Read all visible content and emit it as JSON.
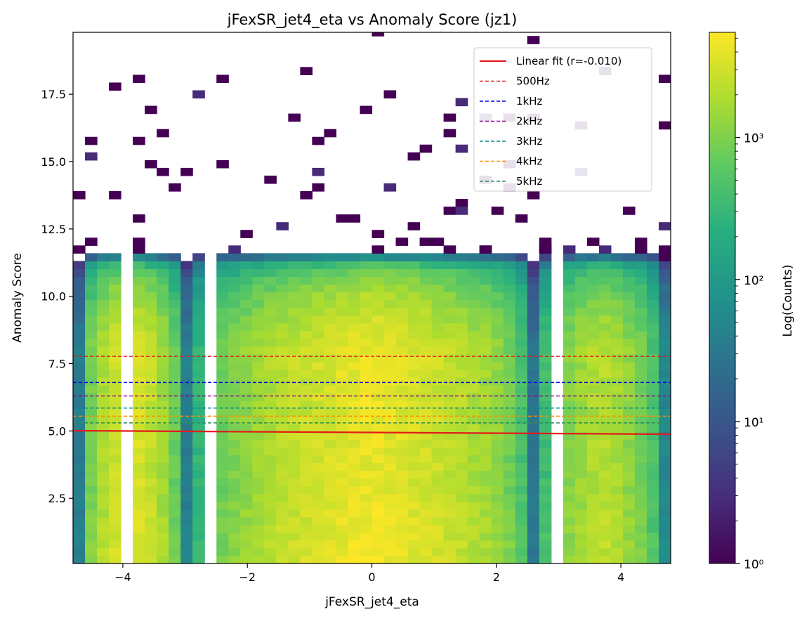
{
  "chart_data": {
    "type": "heatmap",
    "title": "jFexSR_jet4_eta vs Anomaly Score (jz1)",
    "xlabel": "jFexSR_jet4_eta",
    "ylabel": "Anomaly Score",
    "xlim": [
      -4.8,
      4.8
    ],
    "ylim": [
      0.08,
      19.8
    ],
    "xticks": [
      -4,
      -2,
      0,
      2,
      4
    ],
    "xtick_labels": [
      "−4",
      "−2",
      "0",
      "2",
      "4"
    ],
    "yticks": [
      2.5,
      5.0,
      7.5,
      10.0,
      12.5,
      15.0,
      17.5
    ],
    "ytick_labels": [
      "2.5",
      "5.0",
      "7.5",
      "10.0",
      "12.5",
      "15.0",
      "17.5"
    ],
    "colorbar": {
      "label": "Log(Counts)",
      "scale": "log",
      "range": [
        1,
        5500
      ],
      "tick_values": [
        1,
        10,
        100,
        1000
      ],
      "tick_labels": [
        "10⁰",
        "10¹",
        "10²",
        "10³"
      ],
      "colormap": "viridis"
    },
    "heatmap_bins": {
      "x_bins": 50,
      "y_bins": 40,
      "empty_eta_gaps": [
        [
          -4.03,
          -3.84
        ],
        [
          -2.69,
          -2.5
        ],
        [
          2.88,
          3.07
        ]
      ]
    },
    "column_peak_counts": [
      {
        "eta": -4.7,
        "count": 40
      },
      {
        "eta": -3.9,
        "count": 4500
      },
      {
        "eta": -3.0,
        "count": 8
      },
      {
        "eta": -2.0,
        "count": 1500
      },
      {
        "eta": 0.0,
        "count": 5000
      },
      {
        "eta": 2.0,
        "count": 1500
      },
      {
        "eta": 2.6,
        "count": 12
      },
      {
        "eta": 3.7,
        "count": 2500
      },
      {
        "eta": 4.7,
        "count": 60
      }
    ],
    "score_peak_counts": [
      {
        "score": 1.0,
        "relative": 1.0
      },
      {
        "score": 3.0,
        "relative": 0.85
      },
      {
        "score": 8.0,
        "relative": 0.9
      },
      {
        "score": 10.5,
        "relative": 0.3
      },
      {
        "score": 11.5,
        "relative": 0.0015
      }
    ],
    "linear_fit": {
      "label": "Linear fit (r=-0.010)",
      "r": -0.01,
      "x": [
        -4.8,
        4.8
      ],
      "y": [
        5.01,
        4.88
      ],
      "color": "#e31a1c"
    },
    "thresholds": [
      {
        "label": "500Hz",
        "y": 7.77,
        "color": "#e31a1c"
      },
      {
        "label": "1kHz",
        "y": 6.8,
        "color": "#0000ee"
      },
      {
        "label": "2kHz",
        "y": 6.3,
        "color": "#8b008b"
      },
      {
        "label": "3kHz",
        "y": 5.85,
        "color": "#008b8b"
      },
      {
        "label": "4kHz",
        "y": 5.55,
        "color": "#ff8c00"
      },
      {
        "label": "5kHz",
        "y": 5.3,
        "color": "#2e8b57"
      }
    ],
    "legend_position": "upper-right",
    "grid": false
  }
}
